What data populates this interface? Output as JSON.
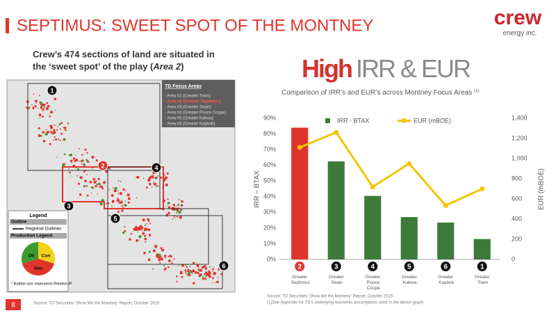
{
  "slide": {
    "header": "SEPTIMUS:  SWEET SPOT OF THE MONTNEY",
    "logo_name": "crew",
    "logo_tagline": "energy inc.",
    "intro_line1": "Crew’s 474 sections of land are situated in",
    "intro_line2": "the ‘sweet spot’ of the play (",
    "intro_emphasis": "Area 2",
    "intro_close": ")",
    "page_number": "8",
    "map_source": "Source: TD Securities’ Show Me the Montney’ Report, October 2015"
  },
  "map": {
    "focus_title": "TD Focus Areas",
    "focus_areas": [
      "- Area #1 (Greater Town)",
      "- Area #2 (Greater Septimus)",
      "- Area #3 (Greater Swan)",
      "- Area #4 (Greater Pouce Coupe)",
      "- Area #5 (Greater Kakwa)",
      "- Area #6 (Greater Kaybob)"
    ],
    "legend_title": "Legend",
    "outline_title": "Outline",
    "regional_outlines": "Regional Outlines",
    "production_title": "Production Legend",
    "oil": "Oil",
    "con": "Con",
    "gas": "Gas",
    "bubble_note": "* Bubble size represents Relative IP",
    "markers": [
      "1",
      "2",
      "3",
      "4",
      "5",
      "6"
    ]
  },
  "chart_data": {
    "type": "combo",
    "title_highlight": "High",
    "title_rest": "IRR & EUR",
    "subtitle": "Comparison of IRR’s and EUR’s across Montney Focus Areas",
    "subtitle_note": "(1)",
    "categories": [
      "Greater Septimus",
      "Greater Swan",
      "Greater Pouce Coupe",
      "Greater Kakwa",
      "Greater Kaybob",
      "Greater Town"
    ],
    "category_badges": [
      "2",
      "3",
      "4",
      "5",
      "6",
      "1"
    ],
    "series": [
      {
        "name": "IRR - BTAX",
        "type": "bar",
        "color": "#3d7a3a",
        "point_colors": [
          "#e0342b",
          "#3d7a3a",
          "#3d7a3a",
          "#3d7a3a",
          "#3d7a3a",
          "#3d7a3a"
        ],
        "values": [
          84,
          62.5,
          40.5,
          27,
          23.5,
          13
        ]
      },
      {
        "name": "EUR (mBOE)",
        "type": "line",
        "axis": "y2",
        "color": "#f2c500",
        "values": [
          1110,
          1260,
          720,
          950,
          535,
          700
        ]
      }
    ],
    "ylabel": "IRR – BTAX",
    "y2label": "EUR (mBOE)",
    "ylim": [
      0,
      90
    ],
    "yticks": [
      {
        "value": 0,
        "label": "0%"
      },
      {
        "value": 10,
        "label": "10%"
      },
      {
        "value": 20,
        "label": "20%"
      },
      {
        "value": 30,
        "label": "30%"
      },
      {
        "value": 40,
        "label": "40%"
      },
      {
        "value": 50,
        "label": "50%"
      },
      {
        "value": 60,
        "label": "60%"
      },
      {
        "value": 70,
        "label": "70%"
      },
      {
        "value": 80,
        "label": "80%"
      },
      {
        "value": 90,
        "label": "90%"
      }
    ],
    "y2lim": [
      0,
      1400
    ],
    "y2ticks": [
      0,
      200,
      400,
      600,
      800,
      {
        "value": 1000,
        "label": "1,000"
      },
      {
        "value": 1200,
        "label": "1,200"
      },
      {
        "value": 1400,
        "label": "1,400"
      }
    ],
    "legend": "top",
    "sources": [
      "Source: TD Securities’ Show Me the Montney’ Report, October 2015",
      "(1)See Appendix for TD’s underlying economic assumptions used in the above graph"
    ]
  }
}
